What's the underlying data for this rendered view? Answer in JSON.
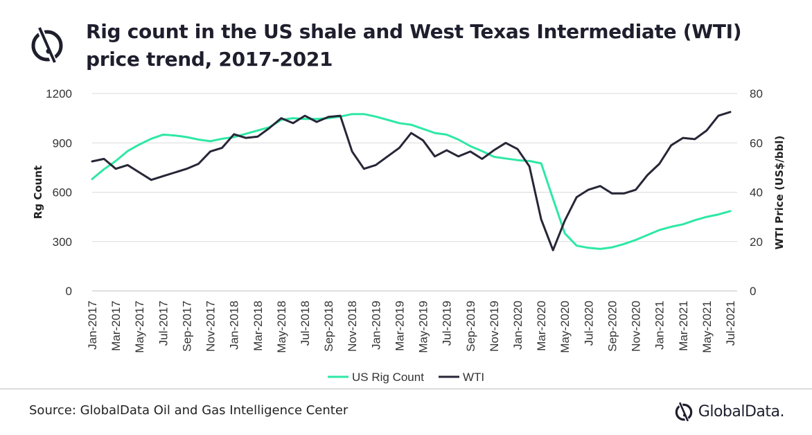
{
  "header": {
    "title_line1": "Rig count in the US shale and West Texas Intermediate (WTI)",
    "title_line2": "price trend, 2017-2021",
    "logo_icon": "globaldata-logo-icon"
  },
  "footer": {
    "source": "Source: GlobalData Oil and Gas Intelligence Center",
    "brand": "GlobalData."
  },
  "colors": {
    "rig": "#2ee8a5",
    "wti": "#262637",
    "grid": "#d9d9d9"
  },
  "chart_data": {
    "type": "line",
    "ylabel": "Rg Count",
    "y2label": "WTI Price (US$/bbl)",
    "ylim": [
      0,
      1200
    ],
    "y_ticks": [
      "0",
      "300",
      "600",
      "900",
      "1200"
    ],
    "y2lim": [
      0,
      80
    ],
    "y2_ticks": [
      "0",
      "20",
      "40",
      "60",
      "80"
    ],
    "grid": "horizontal",
    "legend_position": "bottom",
    "x_tick_labels": [
      "Jan-2017",
      "Mar-2017",
      "May-2017",
      "Jul-2017",
      "Sep-2017",
      "Nov-2017",
      "Jan-2018",
      "Mar-2018",
      "May-2018",
      "Jul-2018",
      "Sep-2018",
      "Nov-2018",
      "Jan-2019",
      "Mar-2019",
      "May-2019",
      "Jul-2019",
      "Sep-2019",
      "Nov-2019",
      "Jan-2020",
      "Mar-2020",
      "May-2020",
      "Jul-2020",
      "Sep-2020",
      "Nov-2020",
      "Jan-2021",
      "Mar-2021",
      "May-2021",
      "Jul-2021"
    ],
    "x": [
      "Jan-2017",
      "Feb-2017",
      "Mar-2017",
      "Apr-2017",
      "May-2017",
      "Jun-2017",
      "Jul-2017",
      "Aug-2017",
      "Sep-2017",
      "Oct-2017",
      "Nov-2017",
      "Dec-2017",
      "Jan-2018",
      "Feb-2018",
      "Mar-2018",
      "Apr-2018",
      "May-2018",
      "Jun-2018",
      "Jul-2018",
      "Aug-2018",
      "Sep-2018",
      "Oct-2018",
      "Nov-2018",
      "Dec-2018",
      "Jan-2019",
      "Feb-2019",
      "Mar-2019",
      "Apr-2019",
      "May-2019",
      "Jun-2019",
      "Jul-2019",
      "Aug-2019",
      "Sep-2019",
      "Oct-2019",
      "Nov-2019",
      "Dec-2019",
      "Jan-2020",
      "Feb-2020",
      "Mar-2020",
      "Apr-2020",
      "May-2020",
      "Jun-2020",
      "Jul-2020",
      "Aug-2020",
      "Sep-2020",
      "Oct-2020",
      "Nov-2020",
      "Dec-2020",
      "Jan-2021",
      "Feb-2021",
      "Mar-2021",
      "Apr-2021",
      "May-2021",
      "Jun-2021",
      "Jul-2021"
    ],
    "series": [
      {
        "name": "US Rig Count",
        "axis": "left",
        "values": [
          680,
          740,
          790,
          850,
          890,
          925,
          950,
          945,
          935,
          920,
          910,
          925,
          935,
          955,
          975,
          995,
          1040,
          1050,
          1045,
          1045,
          1050,
          1060,
          1075,
          1075,
          1060,
          1040,
          1020,
          1010,
          985,
          960,
          950,
          920,
          880,
          850,
          815,
          805,
          795,
          790,
          775,
          560,
          350,
          275,
          262,
          255,
          265,
          285,
          310,
          340,
          370,
          390,
          405,
          430,
          450,
          465,
          485
        ]
      },
      {
        "name": "WTI",
        "axis": "right",
        "values": [
          52.5,
          53.5,
          49.5,
          51,
          48,
          45,
          46.5,
          48,
          49.5,
          51.5,
          56.5,
          58,
          63.5,
          62,
          62.5,
          66,
          70,
          68,
          71,
          68.5,
          70.5,
          71,
          56.5,
          49.5,
          51,
          54.5,
          58,
          64,
          61,
          54.5,
          57,
          54.5,
          56.5,
          53.5,
          57,
          60,
          57.5,
          50.5,
          29,
          16.5,
          28.5,
          38,
          41,
          42.5,
          39.5,
          39.5,
          41,
          47,
          51.5,
          59,
          62,
          61.5,
          65,
          71,
          72.5
        ]
      }
    ]
  }
}
